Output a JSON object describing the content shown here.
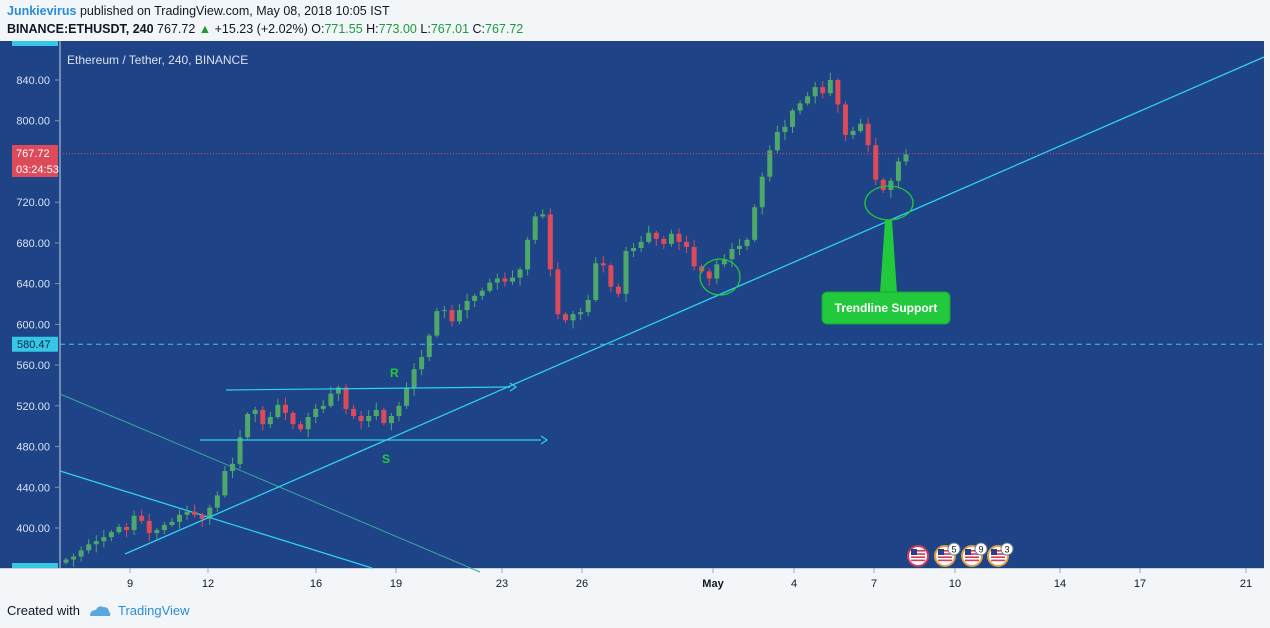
{
  "header": {
    "author": "Junkievirus",
    "published": "published on TradingView.com, May 08, 2018 10:05 IST",
    "symbol": "BINANCE:ETHUSDT, 240",
    "last": "767.72",
    "change": "+15.23 (+2.02%)",
    "o_label": "O:",
    "o": "771.55",
    "h_label": "H:",
    "h": "773.00",
    "l_label": "L:",
    "l": "767.01",
    "c_label": "C:",
    "c": "767.72"
  },
  "footer": {
    "created_with": "Created with",
    "brand": "TradingView"
  },
  "colors": {
    "plot_bg": "#1e4386",
    "up": "#4ea86a",
    "down": "#dd4a5a",
    "trendline": "#2fd0f0",
    "green": "#22c93c",
    "support_dash": "#36c6e6",
    "price_dot": "#dd4a5a"
  },
  "chart_data": {
    "type": "candlestick",
    "title": "Ethereum / Tether, 240, BINANCE",
    "ylim": [
      360,
      860
    ],
    "yticks": [
      "840.00",
      "800.00",
      "720.00",
      "680.00",
      "640.00",
      "600.00",
      "560.00",
      "520.00",
      "480.00",
      "440.00",
      "400.00"
    ],
    "xticks": [
      "9",
      "12",
      "16",
      "19",
      "23",
      "26",
      "May",
      "4",
      "7",
      "10",
      "14",
      "17",
      "21"
    ],
    "last_price": 767.72,
    "last_price_label": "767.72",
    "countdown": "03:24:53",
    "horizontal_level": 580.47,
    "horizontal_level_label": "580.47",
    "annotations": {
      "resistance_label": "R",
      "support_label": "S",
      "callout": "Trendline Support"
    },
    "events": [
      "5",
      "9",
      "3"
    ],
    "closes": [
      369,
      372,
      378,
      384,
      387,
      391,
      396,
      401,
      398,
      412,
      407,
      395,
      398,
      403,
      406,
      413,
      416,
      413,
      409,
      420,
      432,
      456,
      463,
      489,
      512,
      516,
      502,
      509,
      521,
      513,
      502,
      497,
      509,
      517,
      520,
      532,
      538,
      517,
      510,
      505,
      510,
      516,
      503,
      510,
      520,
      538,
      556,
      568,
      589,
      613,
      614,
      603,
      614,
      623,
      628,
      633,
      641,
      645,
      642,
      646,
      654,
      683,
      706,
      708,
      654,
      610,
      604,
      610,
      612,
      624,
      660,
      658,
      637,
      630,
      672,
      675,
      681,
      690,
      684,
      679,
      689,
      681,
      676,
      657,
      652,
      645,
      659,
      664,
      674,
      677,
      683,
      715,
      745,
      771,
      789,
      794,
      810,
      817,
      824,
      833,
      827,
      840,
      816,
      786,
      790,
      797,
      776,
      742,
      732,
      741,
      760,
      767
    ]
  }
}
